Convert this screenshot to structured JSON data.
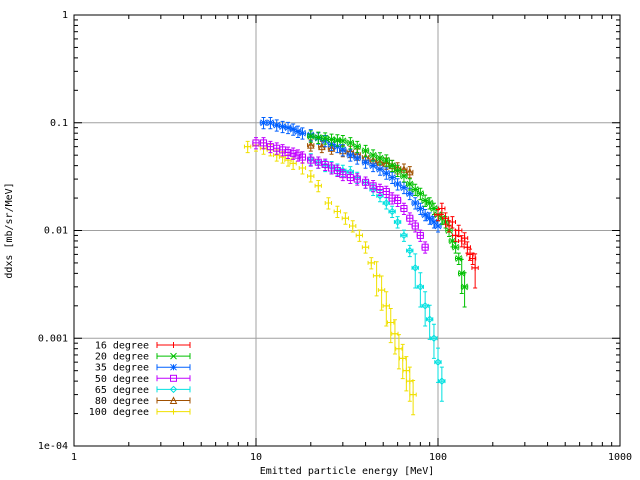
{
  "chart_data": {
    "type": "scatter",
    "title": "",
    "xlabel": "Emitted particle energy [MeV]",
    "ylabel": "ddxs [mb/sr/MeV]",
    "xscale": "log",
    "yscale": "log",
    "xlim": [
      1,
      1000
    ],
    "ylim": [
      0.0001,
      1
    ],
    "grid": true,
    "legend_position": "bottom-left",
    "x_ticks": [
      "1",
      "10",
      "100",
      "1000"
    ],
    "y_ticks": [
      "1e-04",
      "0.001",
      "0.01",
      "0.1",
      "1"
    ],
    "series": [
      {
        "name": "16 degree",
        "color": "#ff0000",
        "marker": "plus",
        "x": [
          100,
          105,
          110,
          115,
          120,
          125,
          130,
          135,
          140,
          145,
          150,
          155,
          160
        ],
        "y": [
          0.014,
          0.016,
          0.013,
          0.011,
          0.012,
          0.009,
          0.01,
          0.008,
          0.0085,
          0.007,
          0.006,
          0.0055,
          0.0045
        ]
      },
      {
        "name": "20 degree",
        "color": "#00c000",
        "marker": "cross",
        "x": [
          20,
          22,
          24,
          26,
          28,
          30,
          33,
          36,
          40,
          44,
          48,
          52,
          56,
          60,
          65,
          70,
          75,
          80,
          85,
          90,
          95,
          100,
          105,
          110,
          115,
          120,
          125,
          130,
          135,
          140
        ],
        "y": [
          0.075,
          0.073,
          0.072,
          0.07,
          0.069,
          0.068,
          0.065,
          0.06,
          0.055,
          0.05,
          0.047,
          0.045,
          0.04,
          0.036,
          0.032,
          0.027,
          0.024,
          0.022,
          0.019,
          0.018,
          0.016,
          0.014,
          0.013,
          0.012,
          0.01,
          0.008,
          0.007,
          0.0055,
          0.004,
          0.003
        ]
      },
      {
        "name": "35 degree",
        "color": "#0060ff",
        "marker": "star",
        "x": [
          11,
          12,
          13,
          14,
          15,
          16,
          17,
          18,
          20,
          22,
          24,
          26,
          28,
          30,
          33,
          36,
          40,
          44,
          48,
          52,
          56,
          60,
          65,
          70,
          75,
          80,
          85,
          90,
          95,
          100
        ],
        "y": [
          0.1,
          0.1,
          0.095,
          0.092,
          0.09,
          0.087,
          0.083,
          0.08,
          0.077,
          0.072,
          0.068,
          0.063,
          0.06,
          0.056,
          0.05,
          0.047,
          0.043,
          0.04,
          0.037,
          0.034,
          0.031,
          0.027,
          0.025,
          0.022,
          0.018,
          0.016,
          0.014,
          0.013,
          0.012,
          0.011
        ]
      },
      {
        "name": "50 degree",
        "color": "#c000ff",
        "marker": "square",
        "x": [
          10,
          11,
          12,
          13,
          14,
          15,
          16,
          17,
          18,
          20,
          22,
          24,
          26,
          28,
          30,
          33,
          36,
          40,
          44,
          48,
          52,
          56,
          60,
          65,
          70,
          75,
          80,
          85
        ],
        "y": [
          0.065,
          0.065,
          0.06,
          0.058,
          0.056,
          0.053,
          0.052,
          0.05,
          0.048,
          0.045,
          0.043,
          0.041,
          0.038,
          0.036,
          0.033,
          0.031,
          0.03,
          0.028,
          0.026,
          0.024,
          0.023,
          0.02,
          0.019,
          0.016,
          0.013,
          0.011,
          0.009,
          0.007
        ]
      },
      {
        "name": "65 degree",
        "color": "#00e0e0",
        "marker": "diamond",
        "x": [
          20,
          22,
          24,
          26,
          28,
          30,
          33,
          36,
          40,
          44,
          48,
          52,
          56,
          60,
          65,
          70,
          75,
          80,
          85,
          90,
          95,
          100,
          105
        ],
        "y": [
          0.046,
          0.043,
          0.04,
          0.039,
          0.037,
          0.036,
          0.035,
          0.031,
          0.028,
          0.024,
          0.021,
          0.018,
          0.015,
          0.012,
          0.009,
          0.0065,
          0.0045,
          0.003,
          0.002,
          0.0015,
          0.001,
          0.0006,
          0.0004
        ]
      },
      {
        "name": "80 degree",
        "color": "#a05000",
        "marker": "triangle",
        "x": [
          20,
          23,
          26,
          30,
          33,
          36,
          40,
          44,
          48,
          52,
          56,
          60,
          65,
          70
        ],
        "y": [
          0.062,
          0.06,
          0.058,
          0.055,
          0.054,
          0.051,
          0.048,
          0.045,
          0.043,
          0.042,
          0.04,
          0.038,
          0.037,
          0.035
        ]
      },
      {
        "name": "100 degree",
        "color": "#f0e000",
        "marker": "plus",
        "x": [
          9,
          10,
          11,
          12,
          13,
          14,
          15,
          16,
          18,
          20,
          22,
          25,
          28,
          31,
          34,
          37,
          40,
          43,
          46,
          49,
          52,
          55,
          58,
          61,
          64,
          67,
          70,
          73
        ],
        "y": [
          0.06,
          0.062,
          0.058,
          0.056,
          0.05,
          0.048,
          0.045,
          0.042,
          0.038,
          0.032,
          0.026,
          0.018,
          0.015,
          0.013,
          0.011,
          0.009,
          0.007,
          0.005,
          0.0038,
          0.0028,
          0.002,
          0.0014,
          0.0011,
          0.0008,
          0.00065,
          0.0005,
          0.0004,
          0.0003
        ]
      }
    ]
  }
}
